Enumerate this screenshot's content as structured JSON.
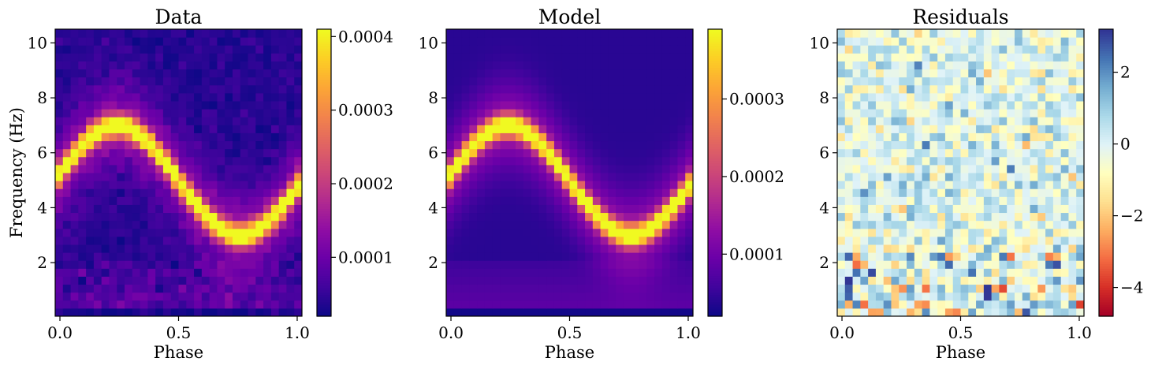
{
  "chart_data": [
    {
      "type": "heatmap",
      "title": "Data",
      "xlabel": "Phase",
      "ylabel": "Frequency (Hz)",
      "xlim": [
        -0.02,
        1.02
      ],
      "ylim": [
        0.05,
        10.5
      ],
      "xticks": [
        0.0,
        0.5,
        1.0
      ],
      "xtick_labels": [
        "0.0",
        "0.5",
        "1.0"
      ],
      "yticks": [
        2,
        4,
        6,
        8,
        10
      ],
      "ytick_labels": [
        "2",
        "4",
        "6",
        "8",
        "10"
      ],
      "colormap": "plasma",
      "colorbar": {
        "range": [
          2e-05,
          0.00041
        ],
        "ticks": [
          0.0001,
          0.0002,
          0.0003,
          0.0004
        ],
        "tick_labels": [
          "0.0001",
          "0.0002",
          "0.0003",
          "0.0004"
        ]
      },
      "grid": false,
      "model": {
        "phase_bins": 32,
        "frequency_bins": 36,
        "pulse_center_hz": 5.0,
        "pulse_amplitude_hz": 2.0,
        "pulse_peak_phase": 0.25,
        "peak_value": 0.00041,
        "background_value": 4e-05,
        "noisy": true
      }
    },
    {
      "type": "heatmap",
      "title": "Model",
      "xlabel": "Phase",
      "ylabel": "",
      "xlim": [
        -0.02,
        1.02
      ],
      "ylim": [
        0.05,
        10.5
      ],
      "xticks": [
        0.0,
        0.5,
        1.0
      ],
      "xtick_labels": [
        "0.0",
        "0.5",
        "1.0"
      ],
      "yticks": [
        2,
        4,
        6,
        8,
        10
      ],
      "ytick_labels": [
        "2",
        "4",
        "6",
        "8",
        "10"
      ],
      "colormap": "plasma",
      "colorbar": {
        "range": [
          2e-05,
          0.00039
        ],
        "ticks": [
          0.0001,
          0.0002,
          0.0003
        ],
        "tick_labels": [
          "0.0001",
          "0.0002",
          "0.0003"
        ]
      },
      "grid": false,
      "model": {
        "phase_bins": 32,
        "frequency_bins": 36,
        "pulse_center_hz": 5.0,
        "pulse_amplitude_hz": 2.0,
        "pulse_peak_phase": 0.25,
        "peak_value": 0.00039,
        "background_value": 4e-05,
        "noisy": false
      }
    },
    {
      "type": "heatmap",
      "title": "Residuals",
      "xlabel": "Phase",
      "ylabel": "",
      "xlim": [
        -0.02,
        1.02
      ],
      "ylim": [
        0.05,
        10.5
      ],
      "xticks": [
        0.0,
        0.5,
        1.0
      ],
      "xtick_labels": [
        "0.0",
        "0.5",
        "1.0"
      ],
      "yticks": [
        2,
        4,
        6,
        8,
        10
      ],
      "ytick_labels": [
        "2",
        "4",
        "6",
        "8",
        "10"
      ],
      "colormap": "RdYlBu",
      "colorbar": {
        "range": [
          -4.8,
          3.2
        ],
        "ticks": [
          2,
          0,
          -2,
          -4
        ],
        "tick_labels": [
          "2",
          "0",
          "−2",
          "−4"
        ]
      },
      "grid": false,
      "model": {
        "phase_bins": 32,
        "frequency_bins": 36,
        "value_range": [
          -4.8,
          3.2
        ],
        "noisy": true
      }
    }
  ]
}
